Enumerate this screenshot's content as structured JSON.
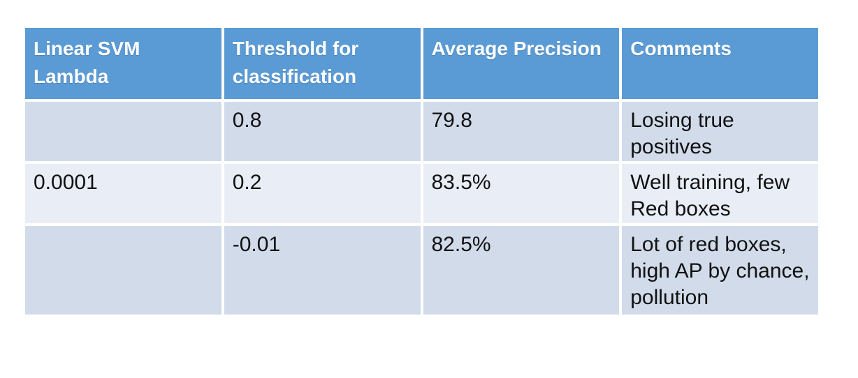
{
  "colors": {
    "header-bg": "#5b9bd5",
    "header-text": "#ffffff",
    "band-dark": "#d1dbea",
    "band-light": "#e9edf6",
    "divider": "#ffffff",
    "body-text": "#111111",
    "page-bg": "#ffffff"
  },
  "table": {
    "columns": [
      "Linear SVM\nLambda",
      "Threshold for\nclassification",
      "Average Precision",
      "Comments"
    ],
    "rows": [
      {
        "cells": [
          "",
          "0.8",
          "79.8",
          "Losing true\npositives"
        ]
      },
      {
        "cells": [
          "0.0001",
          "0.2",
          "83.5%",
          "Well training, few\nRed boxes"
        ]
      },
      {
        "cells": [
          "",
          "-0.01",
          "82.5%",
          "Lot of red boxes,\nhigh AP by chance,\npollution"
        ]
      }
    ]
  }
}
